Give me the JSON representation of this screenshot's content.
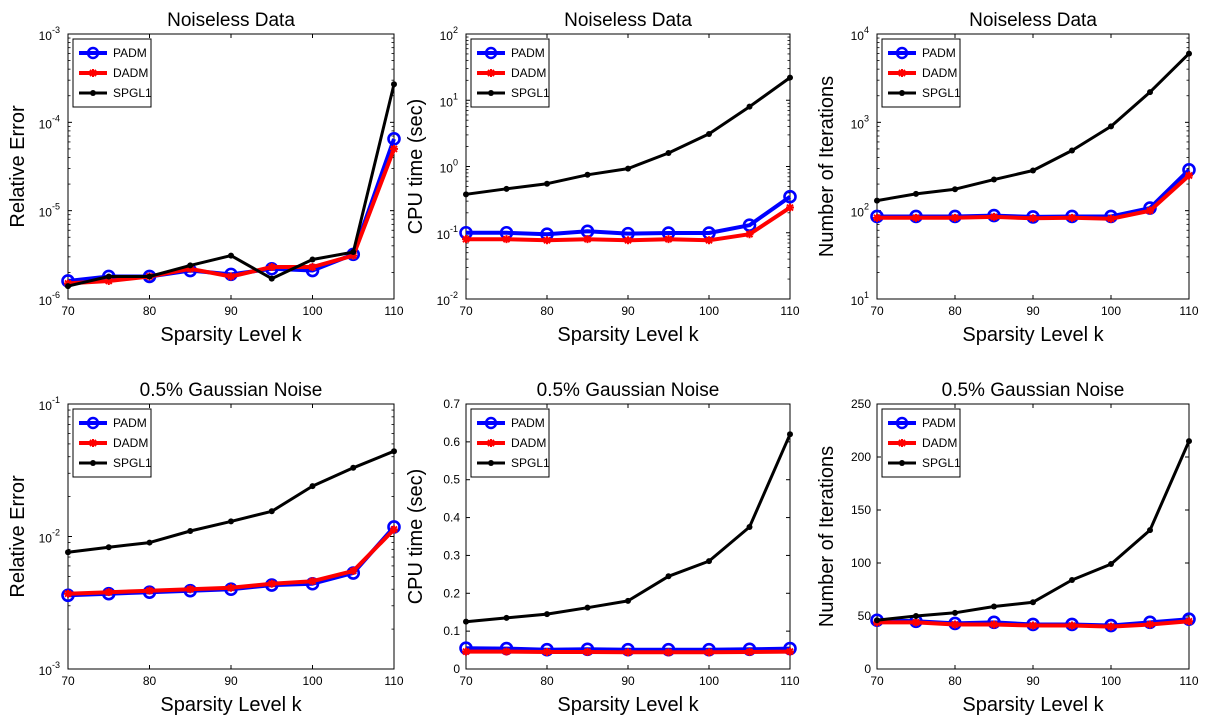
{
  "chart_data": [
    {
      "type": "line",
      "title": "Noiseless Data",
      "xlabel": "Sparsity Level k",
      "ylabel": "Relative Error",
      "yscale": "log",
      "xlim": [
        70,
        110
      ],
      "ylim": [
        1e-06,
        0.001
      ],
      "xticks": [
        70,
        80,
        90,
        100,
        110
      ],
      "yticks": [
        {
          "value": 1e-06,
          "base": "10",
          "exp": "-6"
        },
        {
          "value": 1e-05,
          "base": "10",
          "exp": "-5"
        },
        {
          "value": 0.0001,
          "base": "10",
          "exp": "-4"
        },
        {
          "value": 0.001,
          "base": "10",
          "exp": "-3"
        }
      ],
      "legend": "top-left",
      "grid": false,
      "x": [
        70,
        75,
        80,
        85,
        90,
        95,
        100,
        105,
        110
      ],
      "series": [
        {
          "name": "PADM",
          "color": "#0000ff",
          "marker": "circle",
          "values": [
            1.6e-06,
            1.8e-06,
            1.8e-06,
            2.1e-06,
            1.9e-06,
            2.2e-06,
            2.1e-06,
            3.2e-06,
            6.5e-05
          ]
        },
        {
          "name": "DADM",
          "color": "#ff0000",
          "marker": "star",
          "values": [
            1.5e-06,
            1.6e-06,
            1.8e-06,
            2.2e-06,
            1.8e-06,
            2.3e-06,
            2.3e-06,
            3.1e-06,
            5e-05
          ]
        },
        {
          "name": "SPGL1",
          "color": "#000000",
          "marker": "dot",
          "values": [
            1.4e-06,
            1.8e-06,
            1.8e-06,
            2.4e-06,
            3.1e-06,
            1.7e-06,
            2.8e-06,
            3.4e-06,
            0.00027
          ]
        }
      ]
    },
    {
      "type": "line",
      "title": "Noiseless Data",
      "xlabel": "Sparsity Level k",
      "ylabel": "CPU time (sec)",
      "yscale": "log",
      "xlim": [
        70,
        110
      ],
      "ylim": [
        0.01,
        100
      ],
      "xticks": [
        70,
        80,
        90,
        100,
        110
      ],
      "yticks": [
        {
          "value": 0.01,
          "base": "10",
          "exp": "-2"
        },
        {
          "value": 0.1,
          "base": "10",
          "exp": "-1"
        },
        {
          "value": 1,
          "base": "10",
          "exp": "0"
        },
        {
          "value": 10,
          "base": "10",
          "exp": "1"
        },
        {
          "value": 100,
          "base": "10",
          "exp": "2"
        }
      ],
      "legend": "top-left",
      "grid": false,
      "x": [
        70,
        75,
        80,
        85,
        90,
        95,
        100,
        105,
        110
      ],
      "series": [
        {
          "name": "PADM",
          "color": "#0000ff",
          "marker": "circle",
          "values": [
            0.1,
            0.1,
            0.095,
            0.105,
            0.097,
            0.099,
            0.099,
            0.13,
            0.35
          ]
        },
        {
          "name": "DADM",
          "color": "#ff0000",
          "marker": "star",
          "values": [
            0.08,
            0.08,
            0.077,
            0.08,
            0.077,
            0.08,
            0.077,
            0.095,
            0.24
          ]
        },
        {
          "name": "SPGL1",
          "color": "#000000",
          "marker": "dot",
          "values": [
            0.38,
            0.46,
            0.55,
            0.75,
            0.93,
            1.6,
            3.1,
            8,
            22
          ]
        }
      ]
    },
    {
      "type": "line",
      "title": "Noiseless Data",
      "xlabel": "Sparsity Level k",
      "ylabel": "Number of Iterations",
      "yscale": "log",
      "xlim": [
        70,
        110
      ],
      "ylim": [
        10,
        10000
      ],
      "xticks": [
        70,
        80,
        90,
        100,
        110
      ],
      "yticks": [
        {
          "value": 10,
          "base": "10",
          "exp": "1"
        },
        {
          "value": 100,
          "base": "10",
          "exp": "2"
        },
        {
          "value": 1000,
          "base": "10",
          "exp": "3"
        },
        {
          "value": 10000,
          "base": "10",
          "exp": "4"
        }
      ],
      "legend": "top-left",
      "grid": false,
      "x": [
        70,
        75,
        80,
        85,
        90,
        95,
        100,
        105,
        110
      ],
      "series": [
        {
          "name": "PADM",
          "color": "#0000ff",
          "marker": "circle",
          "values": [
            86,
            86,
            86,
            88,
            85,
            86,
            86,
            107,
            290
          ]
        },
        {
          "name": "DADM",
          "color": "#ff0000",
          "marker": "star",
          "values": [
            83,
            83,
            83,
            85,
            82,
            83,
            81,
            100,
            250
          ]
        },
        {
          "name": "SPGL1",
          "color": "#000000",
          "marker": "dot",
          "values": [
            130,
            155,
            175,
            225,
            285,
            480,
            900,
            2200,
            6000
          ]
        }
      ]
    },
    {
      "type": "line",
      "title": "0.5% Gaussian Noise",
      "xlabel": "Sparsity Level k",
      "ylabel": "Relative Error",
      "yscale": "log",
      "xlim": [
        70,
        110
      ],
      "ylim": [
        0.001,
        0.1
      ],
      "xticks": [
        70,
        80,
        90,
        100,
        110
      ],
      "yticks": [
        {
          "value": 0.001,
          "base": "10",
          "exp": "-3"
        },
        {
          "value": 0.01,
          "base": "10",
          "exp": "-2"
        },
        {
          "value": 0.1,
          "base": "10",
          "exp": "-1"
        }
      ],
      "legend": "top-left",
      "grid": false,
      "x": [
        70,
        75,
        80,
        85,
        90,
        95,
        100,
        105,
        110
      ],
      "series": [
        {
          "name": "PADM",
          "color": "#0000ff",
          "marker": "circle",
          "values": [
            0.0036,
            0.0037,
            0.0038,
            0.0039,
            0.004,
            0.0043,
            0.0044,
            0.0053,
            0.0118
          ]
        },
        {
          "name": "DADM",
          "color": "#ff0000",
          "marker": "star",
          "values": [
            0.0037,
            0.0038,
            0.0039,
            0.004,
            0.0041,
            0.0044,
            0.0046,
            0.0055,
            0.0113
          ]
        },
        {
          "name": "SPGL1",
          "color": "#000000",
          "marker": "dot",
          "values": [
            0.0076,
            0.0083,
            0.009,
            0.011,
            0.013,
            0.0155,
            0.024,
            0.033,
            0.044
          ]
        }
      ]
    },
    {
      "type": "line",
      "title": "0.5% Gaussian Noise",
      "xlabel": "Sparsity Level k",
      "ylabel": "CPU time (sec)",
      "yscale": "linear",
      "xlim": [
        70,
        110
      ],
      "ylim": [
        0,
        0.7
      ],
      "xticks": [
        70,
        80,
        90,
        100,
        110
      ],
      "yticks": [
        {
          "value": 0,
          "label": "0"
        },
        {
          "value": 0.1,
          "label": "0.1"
        },
        {
          "value": 0.2,
          "label": "0.2"
        },
        {
          "value": 0.3,
          "label": "0.3"
        },
        {
          "value": 0.4,
          "label": "0.4"
        },
        {
          "value": 0.5,
          "label": "0.5"
        },
        {
          "value": 0.6,
          "label": "0.6"
        },
        {
          "value": 0.7,
          "label": "0.7"
        }
      ],
      "legend": "top-left",
      "grid": false,
      "x": [
        70,
        75,
        80,
        85,
        90,
        95,
        100,
        105,
        110
      ],
      "series": [
        {
          "name": "PADM",
          "color": "#0000ff",
          "marker": "circle",
          "values": [
            0.055,
            0.054,
            0.051,
            0.052,
            0.051,
            0.051,
            0.051,
            0.052,
            0.054
          ]
        },
        {
          "name": "DADM",
          "color": "#ff0000",
          "marker": "star",
          "values": [
            0.046,
            0.046,
            0.045,
            0.045,
            0.044,
            0.044,
            0.044,
            0.045,
            0.046
          ]
        },
        {
          "name": "SPGL1",
          "color": "#000000",
          "marker": "dot",
          "values": [
            0.125,
            0.135,
            0.145,
            0.162,
            0.18,
            0.245,
            0.285,
            0.375,
            0.62
          ]
        }
      ]
    },
    {
      "type": "line",
      "title": "0.5% Gaussian Noise",
      "xlabel": "Sparsity Level k",
      "ylabel": "Number of Iterations",
      "yscale": "linear",
      "xlim": [
        70,
        110
      ],
      "ylim": [
        0,
        250
      ],
      "xticks": [
        70,
        80,
        90,
        100,
        110
      ],
      "yticks": [
        {
          "value": 0,
          "label": "0"
        },
        {
          "value": 50,
          "label": "50"
        },
        {
          "value": 100,
          "label": "100"
        },
        {
          "value": 150,
          "label": "150"
        },
        {
          "value": 200,
          "label": "200"
        },
        {
          "value": 250,
          "label": "250"
        }
      ],
      "legend": "top-left",
      "grid": false,
      "x": [
        70,
        75,
        80,
        85,
        90,
        95,
        100,
        105,
        110
      ],
      "series": [
        {
          "name": "PADM",
          "color": "#0000ff",
          "marker": "circle",
          "values": [
            46,
            45,
            43,
            44,
            42,
            42,
            41,
            44,
            47
          ]
        },
        {
          "name": "DADM",
          "color": "#ff0000",
          "marker": "star",
          "values": [
            44,
            44,
            42,
            42,
            41,
            41,
            40,
            42,
            45
          ]
        },
        {
          "name": "SPGL1",
          "color": "#000000",
          "marker": "dot",
          "values": [
            46,
            50,
            53,
            59,
            63,
            84,
            99,
            131,
            215
          ]
        }
      ]
    }
  ]
}
